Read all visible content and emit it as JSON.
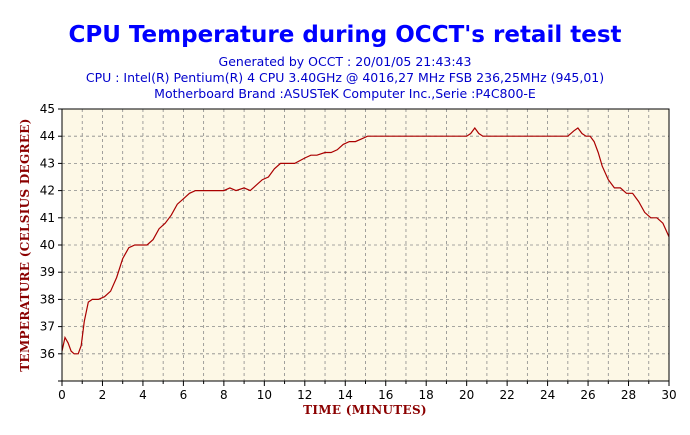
{
  "chart_data": {
    "type": "line",
    "title": "CPU Temperature during OCCT's retail test",
    "subtitles": [
      "Generated by OCCT : 20/01/05 21:43:43",
      "CPU : Intel(R) Pentium(R) 4 CPU 3.40GHz @ 4016,27 MHz FSB 236,25MHz (945,01)",
      "Motherboard Brand :ASUSTeK Computer Inc.,Serie :P4C800-E"
    ],
    "xlabel": "TIME (MINUTES)",
    "ylabel": "TEMPERATURE (CELSIUS DEGREE)",
    "xlim": [
      0,
      30
    ],
    "ylim": [
      35,
      45
    ],
    "xticks": [
      0,
      2,
      4,
      6,
      8,
      10,
      12,
      14,
      16,
      18,
      20,
      22,
      24,
      26,
      28,
      30
    ],
    "yticks": [
      36,
      37,
      38,
      39,
      40,
      41,
      42,
      43,
      44,
      45
    ],
    "grid": true,
    "colors": {
      "title": "#0000ff",
      "subtitle": "#0000cc",
      "axis_label": "#8b0000",
      "line": "#aa0000",
      "plot_background": "#fdf8e6",
      "grid": "#8a8a8a"
    },
    "series": [
      {
        "x": [
          0,
          0.15,
          0.3,
          0.45,
          0.6,
          0.8,
          0.95,
          1.1,
          1.3,
          1.5,
          1.8,
          2.1,
          2.4,
          2.7,
          3.0,
          3.3,
          3.6,
          3.9,
          4.2,
          4.5,
          4.8,
          5.1,
          5.4,
          5.7,
          6.0,
          6.3,
          6.6,
          7.0,
          7.5,
          8.0,
          8.3,
          8.6,
          9.0,
          9.3,
          9.6,
          9.9,
          10.2,
          10.5,
          10.8,
          11.1,
          11.5,
          12.0,
          12.3,
          12.6,
          13.0,
          13.3,
          13.6,
          13.9,
          14.2,
          14.5,
          14.8,
          15.1,
          15.5,
          16,
          17,
          18,
          19,
          20,
          20.2,
          20.4,
          20.6,
          20.8,
          21.1,
          22,
          23,
          24,
          25,
          25.3,
          25.5,
          25.7,
          25.9,
          26.1,
          26.3,
          26.5,
          26.7,
          27.0,
          27.3,
          27.6,
          27.9,
          28.2,
          28.5,
          28.8,
          29.1,
          29.4,
          29.7,
          30.0
        ],
        "y": [
          36.1,
          36.6,
          36.4,
          36.1,
          36.0,
          36.0,
          36.3,
          37.2,
          37.9,
          38.0,
          38.0,
          38.1,
          38.3,
          38.8,
          39.5,
          39.9,
          40.0,
          40.0,
          40.0,
          40.2,
          40.6,
          40.8,
          41.1,
          41.5,
          41.7,
          41.9,
          42.0,
          42.0,
          42.0,
          42.0,
          42.1,
          42.0,
          42.1,
          42.0,
          42.2,
          42.4,
          42.5,
          42.8,
          43.0,
          43.0,
          43.0,
          43.2,
          43.3,
          43.3,
          43.4,
          43.4,
          43.5,
          43.7,
          43.8,
          43.8,
          43.9,
          44.0,
          44.0,
          44.0,
          44.0,
          44.0,
          44.0,
          44.0,
          44.1,
          44.3,
          44.1,
          44.0,
          44.0,
          44.0,
          44.0,
          44.0,
          44.0,
          44.2,
          44.3,
          44.1,
          44.0,
          44.0,
          43.8,
          43.4,
          42.9,
          42.4,
          42.1,
          42.1,
          41.9,
          41.9,
          41.6,
          41.2,
          41.0,
          41.0,
          40.8,
          40.3
        ]
      }
    ]
  }
}
